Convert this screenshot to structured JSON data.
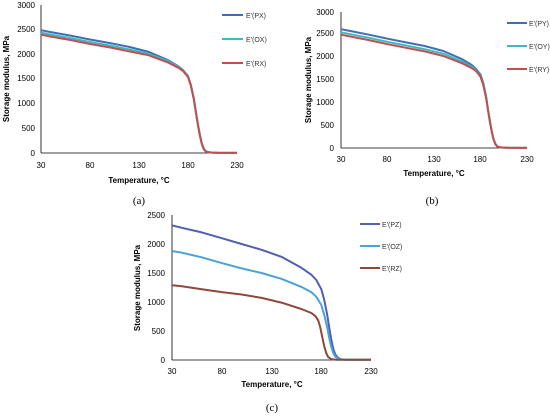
{
  "chart_data": [
    {
      "type": "line",
      "panel_label": "(a)",
      "xlabel": "Temperature, °C",
      "ylabel": "Storage modulus, MPa",
      "xlim": [
        30,
        230
      ],
      "ylim": [
        0,
        3000
      ],
      "xticks": [
        30,
        80,
        130,
        180,
        230
      ],
      "yticks": [
        0,
        500,
        1000,
        1500,
        2000,
        2500,
        3000
      ],
      "grid": false,
      "legend_position": "right",
      "series": [
        {
          "name": "E'(PX)",
          "color": "#3f6fb3",
          "x": [
            30,
            40,
            60,
            80,
            100,
            120,
            140,
            160,
            170,
            175,
            180,
            183,
            186,
            188,
            190,
            192,
            194,
            196,
            198,
            200,
            205,
            210,
            230
          ],
          "y": [
            2490,
            2450,
            2380,
            2300,
            2230,
            2150,
            2050,
            1880,
            1760,
            1680,
            1560,
            1380,
            1100,
            850,
            600,
            380,
            200,
            90,
            40,
            20,
            8,
            5,
            3
          ]
        },
        {
          "name": "E'(OX)",
          "color": "#3fb8c4",
          "x": [
            30,
            40,
            60,
            80,
            100,
            120,
            140,
            160,
            170,
            175,
            180,
            183,
            186,
            188,
            190,
            192,
            194,
            196,
            198,
            200,
            205,
            210,
            230
          ],
          "y": [
            2440,
            2400,
            2330,
            2250,
            2180,
            2100,
            2010,
            1860,
            1750,
            1670,
            1550,
            1370,
            1090,
            840,
            590,
            370,
            195,
            85,
            38,
            18,
            8,
            5,
            3
          ]
        },
        {
          "name": "E'(RX)",
          "color": "#c0504d",
          "x": [
            30,
            40,
            60,
            80,
            100,
            120,
            140,
            160,
            170,
            175,
            180,
            183,
            186,
            188,
            190,
            192,
            194,
            196,
            198,
            200,
            205,
            210,
            230
          ],
          "y": [
            2400,
            2360,
            2290,
            2210,
            2140,
            2060,
            1980,
            1830,
            1730,
            1660,
            1540,
            1360,
            1080,
            830,
            580,
            360,
            190,
            80,
            35,
            17,
            8,
            5,
            3
          ]
        }
      ]
    },
    {
      "type": "line",
      "panel_label": "(b)",
      "xlabel": "Temperature, °C",
      "ylabel": "Storage modulus, MPa",
      "xlim": [
        30,
        230
      ],
      "ylim": [
        0,
        3000
      ],
      "xticks": [
        30,
        80,
        130,
        180,
        230
      ],
      "yticks": [
        0,
        500,
        1000,
        1500,
        2000,
        2500,
        3000
      ],
      "grid": false,
      "legend_position": "right",
      "series": [
        {
          "name": "E'(PY)",
          "color": "#3f6fb3",
          "x": [
            30,
            40,
            60,
            80,
            100,
            120,
            140,
            160,
            170,
            175,
            180,
            183,
            186,
            188,
            190,
            192,
            194,
            196,
            198,
            200,
            205,
            210,
            230
          ],
          "y": [
            2620,
            2580,
            2500,
            2410,
            2330,
            2250,
            2140,
            1960,
            1840,
            1750,
            1620,
            1430,
            1140,
            870,
            610,
            380,
            200,
            90,
            40,
            20,
            8,
            5,
            3
          ]
        },
        {
          "name": "E'(OY)",
          "color": "#3fb8c4",
          "x": [
            30,
            40,
            60,
            80,
            100,
            120,
            140,
            160,
            170,
            175,
            180,
            183,
            186,
            188,
            190,
            192,
            194,
            196,
            198,
            200,
            205,
            210,
            230
          ],
          "y": [
            2550,
            2510,
            2430,
            2340,
            2260,
            2180,
            2080,
            1910,
            1800,
            1720,
            1590,
            1410,
            1120,
            860,
            600,
            370,
            195,
            85,
            38,
            18,
            8,
            5,
            3
          ]
        },
        {
          "name": "E'(RY)",
          "color": "#c0504d",
          "x": [
            30,
            40,
            60,
            80,
            100,
            120,
            140,
            160,
            170,
            175,
            180,
            183,
            186,
            188,
            190,
            192,
            194,
            196,
            198,
            200,
            205,
            210,
            230
          ],
          "y": [
            2500,
            2460,
            2380,
            2290,
            2210,
            2130,
            2030,
            1870,
            1770,
            1700,
            1570,
            1390,
            1100,
            850,
            590,
            360,
            190,
            80,
            35,
            17,
            8,
            5,
            3
          ]
        }
      ]
    },
    {
      "type": "line",
      "panel_label": "(c)",
      "xlabel": "Temperature, °C",
      "ylabel": "Storage modulus, MPa",
      "xlim": [
        30,
        230
      ],
      "ylim": [
        0,
        2500
      ],
      "xticks": [
        30,
        80,
        130,
        180,
        230
      ],
      "yticks": [
        0,
        500,
        1000,
        1500,
        2000,
        2500
      ],
      "grid": false,
      "legend_position": "right",
      "series": [
        {
          "name": "E'(PZ)",
          "color": "#5060b0",
          "x": [
            30,
            40,
            60,
            80,
            100,
            120,
            140,
            160,
            170,
            175,
            180,
            183,
            186,
            188,
            190,
            192,
            194,
            196,
            198,
            200,
            205,
            210,
            230
          ],
          "y": [
            2320,
            2280,
            2200,
            2100,
            2000,
            1900,
            1780,
            1590,
            1470,
            1380,
            1220,
            1040,
            780,
            560,
            360,
            200,
            100,
            50,
            25,
            12,
            6,
            4,
            3
          ]
        },
        {
          "name": "E'(OZ)",
          "color": "#4aa3d6",
          "x": [
            30,
            40,
            60,
            80,
            100,
            120,
            140,
            160,
            170,
            175,
            180,
            183,
            186,
            188,
            190,
            192,
            194,
            196,
            198,
            200,
            205,
            210,
            230
          ],
          "y": [
            1880,
            1850,
            1770,
            1670,
            1580,
            1500,
            1400,
            1260,
            1170,
            1090,
            950,
            780,
            560,
            380,
            230,
            120,
            60,
            30,
            15,
            8,
            5,
            4,
            3
          ]
        },
        {
          "name": "E'(RZ)",
          "color": "#8b4a3a",
          "x": [
            30,
            40,
            60,
            80,
            100,
            120,
            140,
            160,
            170,
            174,
            177,
            179,
            181,
            183,
            185,
            187,
            190,
            195,
            200,
            210,
            230
          ],
          "y": [
            1290,
            1270,
            1220,
            1170,
            1130,
            1070,
            990,
            880,
            810,
            760,
            680,
            560,
            400,
            240,
            120,
            50,
            15,
            6,
            4,
            3,
            3
          ]
        }
      ]
    }
  ]
}
